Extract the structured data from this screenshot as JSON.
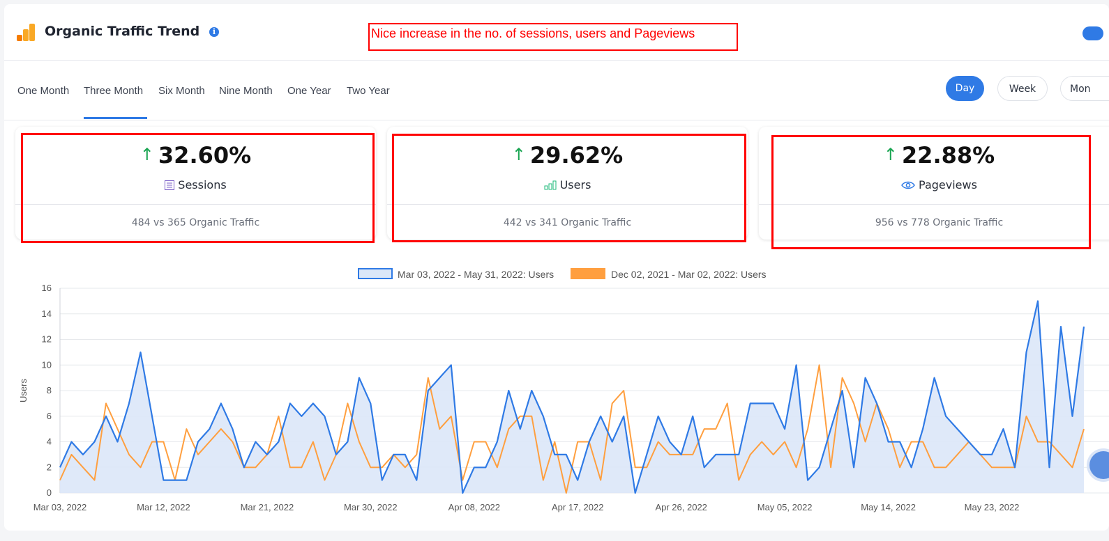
{
  "header": {
    "title": "Organic Traffic Trend",
    "info_icon": "info-icon",
    "annotation": "Nice increase in the no. of  sessions, users and Pageviews"
  },
  "tabs": [
    {
      "label": "One Month",
      "active": false
    },
    {
      "label": "Three Month",
      "active": true
    },
    {
      "label": "Six Month",
      "active": false
    },
    {
      "label": "Nine Month",
      "active": false
    },
    {
      "label": "One Year",
      "active": false
    },
    {
      "label": "Two Year",
      "active": false
    }
  ],
  "granularity": [
    {
      "label": "Day",
      "active": true
    },
    {
      "label": "Week",
      "active": false
    },
    {
      "label": "Mon",
      "active": false
    }
  ],
  "cards": [
    {
      "percent": "32.60%",
      "label": "Sessions",
      "icon": "list-icon",
      "compare": "484 vs 365 Organic Traffic"
    },
    {
      "percent": "29.62%",
      "label": "Users",
      "icon": "bar-chart-icon",
      "compare": "442 vs 341 Organic Traffic"
    },
    {
      "percent": "22.88%",
      "label": "Pageviews",
      "icon": "eye-icon",
      "compare": "956 vs 778 Organic Traffic"
    }
  ],
  "colors": {
    "accent": "#2f7ae5",
    "up": "#1aa552",
    "annotation": "#ff0000",
    "series_current": "#2f7ae5",
    "series_current_fill": "#dbe7f8",
    "series_previous": "#ff9f3f"
  },
  "chart_data": {
    "type": "area",
    "ylabel": "Users",
    "ylim": [
      0,
      16
    ],
    "yticks": [
      0,
      2,
      4,
      6,
      8,
      10,
      12,
      14,
      16
    ],
    "grid": true,
    "legend_position": "top-center",
    "x_tick_labels": [
      "Mar 03, 2022",
      "Mar 12, 2022",
      "Mar 21, 2022",
      "Mar 30, 2022",
      "Apr 08, 2022",
      "Apr 17, 2022",
      "Apr 26, 2022",
      "May 05, 2022",
      "May 14, 2022",
      "May 23, 2022"
    ],
    "series": [
      {
        "name": "Mar 03, 2022 - May 31, 2022: Users",
        "values": [
          2,
          4,
          3,
          4,
          6,
          4,
          7,
          11,
          6,
          1,
          1,
          1,
          4,
          5,
          7,
          5,
          2,
          4,
          3,
          4,
          7,
          6,
          7,
          6,
          3,
          4,
          9,
          7,
          1,
          3,
          3,
          1,
          8,
          9,
          10,
          0,
          2,
          2,
          4,
          8,
          5,
          8,
          6,
          3,
          3,
          1,
          4,
          6,
          4,
          6,
          0,
          3,
          6,
          4,
          3,
          6,
          2,
          3,
          3,
          3,
          7,
          7,
          7,
          5,
          10,
          1,
          2,
          5,
          8,
          2,
          9,
          7,
          4,
          4,
          2,
          5,
          9,
          6,
          5,
          4,
          3,
          3,
          5,
          2,
          11,
          15,
          2,
          13,
          6,
          13
        ]
      },
      {
        "name": "Dec 02, 2021 - Mar 02, 2022: Users",
        "values": [
          1,
          3,
          2,
          1,
          7,
          5,
          3,
          2,
          4,
          4,
          1,
          5,
          3,
          4,
          5,
          4,
          2,
          2,
          3,
          6,
          2,
          2,
          4,
          1,
          3,
          7,
          4,
          2,
          2,
          3,
          2,
          3,
          9,
          5,
          6,
          1,
          4,
          4,
          2,
          5,
          6,
          6,
          1,
          4,
          0,
          4,
          4,
          1,
          7,
          8,
          2,
          2,
          4,
          3,
          3,
          3,
          5,
          5,
          7,
          1,
          3,
          4,
          3,
          4,
          2,
          5,
          10,
          2,
          9,
          7,
          4,
          7,
          5,
          2,
          4,
          4,
          2,
          2,
          3,
          4,
          3,
          2,
          2,
          2,
          6,
          4,
          4,
          3,
          2,
          5
        ]
      }
    ]
  }
}
